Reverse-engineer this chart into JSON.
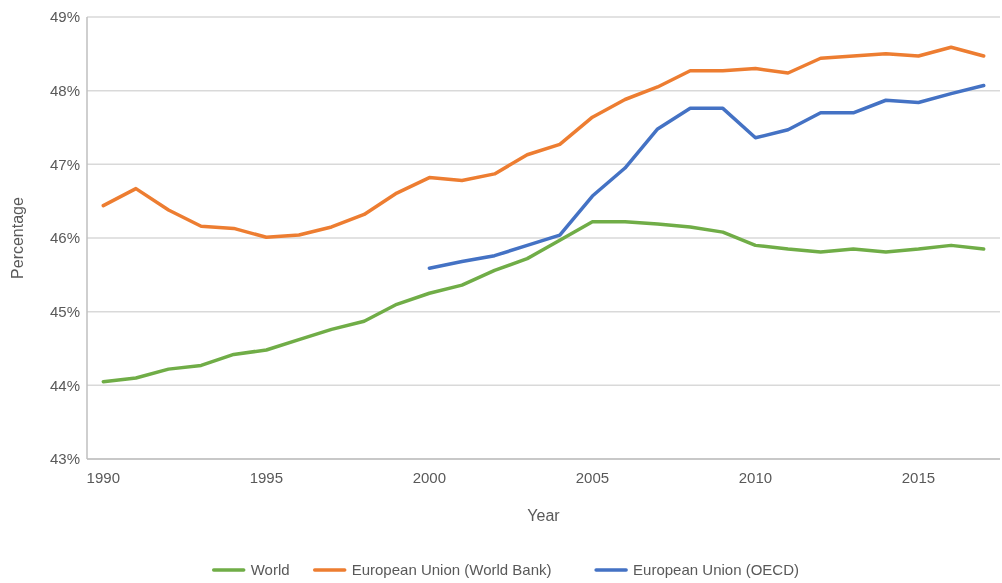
{
  "chart_data": {
    "type": "line",
    "xlabel": "Year",
    "ylabel": "Percentage",
    "xlim": [
      1989.5,
      2017.5
    ],
    "xticks": [
      1990,
      1995,
      2000,
      2005,
      2010,
      2015
    ],
    "ylim": [
      43,
      49
    ],
    "yticks": [
      {
        "value": 43,
        "label": "43%"
      },
      {
        "value": 44,
        "label": "44%"
      },
      {
        "value": 45,
        "label": "45%"
      },
      {
        "value": 46,
        "label": "46%"
      },
      {
        "value": 47,
        "label": "47%"
      },
      {
        "value": 48,
        "label": "48%"
      },
      {
        "value": 49,
        "label": "49%"
      }
    ],
    "grid": "y",
    "legend": "bottom",
    "line_style": "solid",
    "marker": "none",
    "x": [
      1990,
      1991,
      1992,
      1993,
      1994,
      1995,
      1996,
      1997,
      1998,
      1999,
      2000,
      2001,
      2002,
      2003,
      2004,
      2005,
      2006,
      2007,
      2008,
      2009,
      2010,
      2011,
      2012,
      2013,
      2014,
      2015,
      2016,
      2017
    ],
    "series": [
      {
        "name": "World",
        "color": "#70ad47",
        "values": [
          44.05,
          44.1,
          44.22,
          44.27,
          44.42,
          44.48,
          44.62,
          44.76,
          44.87,
          45.1,
          45.25,
          45.36,
          45.56,
          45.72,
          45.97,
          46.22,
          46.22,
          46.19,
          46.15,
          46.08,
          45.9,
          45.85,
          45.81,
          45.85,
          45.81,
          45.85,
          45.9,
          45.85
        ]
      },
      {
        "name": "European Union (World Bank)",
        "color": "#ed7d31",
        "values": [
          46.44,
          46.67,
          46.38,
          46.16,
          46.13,
          46.01,
          46.04,
          46.15,
          46.32,
          46.61,
          46.82,
          46.78,
          46.87,
          47.13,
          47.27,
          47.64,
          47.88,
          48.05,
          48.27,
          48.27,
          48.3,
          48.24,
          48.44,
          48.47,
          48.5,
          48.47,
          48.59,
          48.47
        ]
      },
      {
        "name": "European Union (OECD)",
        "color": "#4472c4",
        "values": [
          null,
          null,
          null,
          null,
          null,
          null,
          null,
          null,
          null,
          null,
          45.59,
          45.68,
          45.76,
          45.9,
          46.04,
          46.57,
          46.95,
          47.48,
          47.76,
          47.76,
          47.36,
          47.47,
          47.7,
          47.7,
          47.87,
          47.84,
          47.96,
          48.07
        ]
      }
    ]
  }
}
